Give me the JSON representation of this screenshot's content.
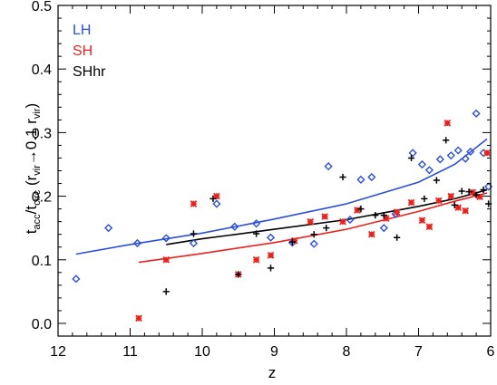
{
  "chart_data": {
    "type": "scatter",
    "xlabel": "z",
    "ylabel_parts": {
      "t1": "t",
      "s1": "acc",
      "slash": "/t",
      "s2": "circ",
      "open": " (r",
      "s3": "vir",
      "arrow": "→0.1 r",
      "s4": "vir",
      "close": ")"
    },
    "xlim": [
      12,
      6
    ],
    "ylim": [
      -0.02,
      0.5
    ],
    "x_ticks": [
      12,
      11,
      10,
      9,
      8,
      7,
      6
    ],
    "y_ticks": [
      0.0,
      0.1,
      0.2,
      0.3,
      0.4,
      0.5
    ],
    "y_tick_labels": [
      "0.0",
      "0.1",
      "0.2",
      "0.3",
      "0.4",
      "0.5"
    ],
    "grid": false,
    "legend_position": "top-left",
    "series": [
      {
        "name": "LH",
        "color": "#2b4fd9",
        "marker": "diamond",
        "points": [
          [
            11.75,
            0.07
          ],
          [
            11.3,
            0.15
          ],
          [
            10.9,
            0.126
          ],
          [
            10.5,
            0.134
          ],
          [
            10.12,
            0.126
          ],
          [
            9.8,
            0.188
          ],
          [
            9.55,
            0.152
          ],
          [
            9.25,
            0.157
          ],
          [
            9.05,
            0.135
          ],
          [
            8.75,
            0.127
          ],
          [
            8.45,
            0.125
          ],
          [
            8.25,
            0.247
          ],
          [
            7.95,
            0.163
          ],
          [
            7.8,
            0.226
          ],
          [
            7.65,
            0.23
          ],
          [
            7.48,
            0.15
          ],
          [
            7.32,
            0.172
          ],
          [
            7.08,
            0.268
          ],
          [
            6.95,
            0.25
          ],
          [
            6.85,
            0.241
          ],
          [
            6.7,
            0.258
          ],
          [
            6.55,
            0.264
          ],
          [
            6.45,
            0.272
          ],
          [
            6.35,
            0.259
          ],
          [
            6.28,
            0.27
          ],
          [
            6.2,
            0.33
          ],
          [
            6.1,
            0.268
          ],
          [
            6.03,
            0.215
          ]
        ],
        "fit": [
          [
            11.75,
            0.109
          ],
          [
            11.0,
            0.124
          ],
          [
            10.0,
            0.142
          ],
          [
            9.0,
            0.164
          ],
          [
            8.0,
            0.188
          ],
          [
            7.0,
            0.222
          ],
          [
            6.5,
            0.25
          ],
          [
            6.05,
            0.29
          ]
        ]
      },
      {
        "name": "SH",
        "color": "#e8231f",
        "marker": "asterisk",
        "points": [
          [
            10.88,
            0.008
          ],
          [
            10.5,
            0.1
          ],
          [
            10.12,
            0.188
          ],
          [
            9.8,
            0.2
          ],
          [
            9.5,
            0.077
          ],
          [
            9.25,
            0.1
          ],
          [
            9.05,
            0.107
          ],
          [
            8.72,
            0.13
          ],
          [
            8.5,
            0.16
          ],
          [
            8.3,
            0.168
          ],
          [
            8.05,
            0.16
          ],
          [
            7.85,
            0.178
          ],
          [
            7.65,
            0.14
          ],
          [
            7.45,
            0.165
          ],
          [
            7.3,
            0.175
          ],
          [
            7.1,
            0.19
          ],
          [
            6.95,
            0.162
          ],
          [
            6.85,
            0.152
          ],
          [
            6.72,
            0.193
          ],
          [
            6.6,
            0.315
          ],
          [
            6.55,
            0.2
          ],
          [
            6.45,
            0.182
          ],
          [
            6.35,
            0.177
          ],
          [
            6.25,
            0.206
          ],
          [
            6.15,
            0.199
          ],
          [
            6.05,
            0.268
          ]
        ],
        "fit": [
          [
            10.88,
            0.096
          ],
          [
            10.0,
            0.11
          ],
          [
            9.0,
            0.127
          ],
          [
            8.0,
            0.148
          ],
          [
            7.0,
            0.176
          ],
          [
            6.5,
            0.192
          ],
          [
            6.05,
            0.205
          ]
        ]
      },
      {
        "name": "SHhr",
        "color": "#000000",
        "marker": "plus",
        "points": [
          [
            10.5,
            0.05
          ],
          [
            10.12,
            0.141
          ],
          [
            9.85,
            0.196
          ],
          [
            9.5,
            0.077
          ],
          [
            9.25,
            0.141
          ],
          [
            9.05,
            0.087
          ],
          [
            8.75,
            0.128
          ],
          [
            8.45,
            0.14
          ],
          [
            8.28,
            0.15
          ],
          [
            8.05,
            0.23
          ],
          [
            7.8,
            0.18
          ],
          [
            7.6,
            0.17
          ],
          [
            7.48,
            0.17
          ],
          [
            7.3,
            0.135
          ],
          [
            7.1,
            0.26
          ],
          [
            6.92,
            0.196
          ],
          [
            6.75,
            0.225
          ],
          [
            6.62,
            0.288
          ],
          [
            6.5,
            0.186
          ],
          [
            6.4,
            0.208
          ],
          [
            6.3,
            0.207
          ],
          [
            6.2,
            0.202
          ],
          [
            6.1,
            0.21
          ],
          [
            6.03,
            0.188
          ]
        ],
        "fit": [
          [
            10.5,
            0.124
          ],
          [
            10.0,
            0.133
          ],
          [
            9.0,
            0.148
          ],
          [
            8.0,
            0.163
          ],
          [
            7.0,
            0.184
          ],
          [
            6.5,
            0.196
          ],
          [
            6.05,
            0.21
          ]
        ]
      }
    ]
  }
}
